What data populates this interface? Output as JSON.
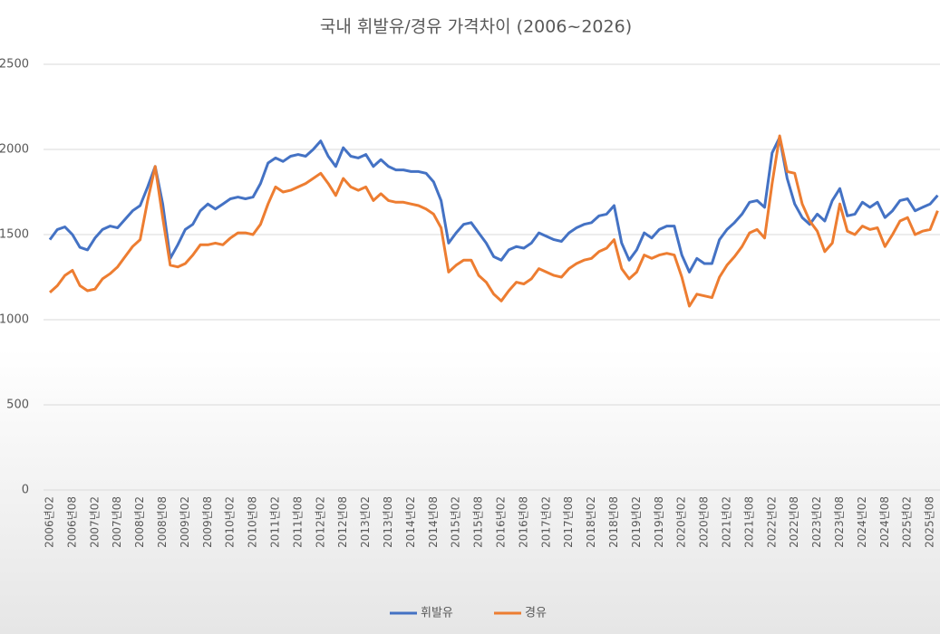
{
  "chart_data": {
    "type": "line",
    "title": "국내 휘발유/경유 가격차이 (2006~2026)",
    "categories": [
      "2006년02",
      null,
      null,
      "2006년08",
      null,
      null,
      "2007년02",
      null,
      null,
      "2007년08",
      null,
      null,
      "2008년02",
      null,
      null,
      "2008년08",
      null,
      null,
      "2009년02",
      null,
      null,
      "2009년08",
      null,
      null,
      "2010년02",
      null,
      null,
      "2010년08",
      null,
      null,
      "2011년02",
      null,
      null,
      "2011년08",
      null,
      null,
      "2012년02",
      null,
      null,
      "2012년08",
      null,
      null,
      "2013년02",
      null,
      null,
      "2013년08",
      null,
      null,
      "2014년02",
      null,
      null,
      "2014년08",
      null,
      null,
      "2015년02",
      null,
      null,
      "2015년08",
      null,
      null,
      "2016년02",
      null,
      null,
      "2016년08",
      null,
      null,
      "2017년02",
      null,
      null,
      "2017년08",
      null,
      null,
      "2018년02",
      null,
      null,
      "2018년08",
      null,
      null,
      "2019년02",
      null,
      null,
      "2019년08",
      null,
      null,
      "2020년02",
      null,
      null,
      "2020년08",
      null,
      null,
      "2021년02",
      null,
      null,
      "2021년08",
      null,
      null,
      "2022년02",
      null,
      null,
      "2022년08",
      null,
      null,
      "2023년02",
      null,
      null,
      "2023년08",
      null,
      null,
      "2024년02",
      null,
      null,
      "2024년08",
      null,
      null,
      "2025년02",
      null,
      null,
      "2025년08",
      null
    ],
    "series": [
      {
        "name": "휘발유",
        "color": "#4472c4",
        "values": [
          1470,
          1530,
          1545,
          1500,
          1425,
          1410,
          1480,
          1530,
          1550,
          1540,
          1590,
          1640,
          1670,
          1780,
          1900,
          1680,
          1360,
          1440,
          1530,
          1560,
          1640,
          1680,
          1650,
          1680,
          1710,
          1720,
          1710,
          1720,
          1800,
          1920,
          1950,
          1930,
          1960,
          1970,
          1960,
          2000,
          2050,
          1960,
          1900,
          2010,
          1960,
          1950,
          1970,
          1900,
          1940,
          1900,
          1880,
          1880,
          1870,
          1870,
          1860,
          1810,
          1700,
          1450,
          1510,
          1560,
          1570,
          1510,
          1450,
          1370,
          1350,
          1410,
          1430,
          1420,
          1450,
          1510,
          1490,
          1470,
          1460,
          1510,
          1540,
          1560,
          1570,
          1610,
          1620,
          1670,
          1450,
          1350,
          1410,
          1510,
          1480,
          1530,
          1550,
          1550,
          1380,
          1280,
          1360,
          1330,
          1330,
          1470,
          1530,
          1570,
          1620,
          1690,
          1700,
          1660,
          1980,
          2070,
          1830,
          1680,
          1600,
          1560,
          1620,
          1580,
          1700,
          1770,
          1610,
          1620,
          1690,
          1660,
          1690,
          1600,
          1640,
          1700,
          1710,
          1640,
          1660,
          1680,
          1730
        ]
      },
      {
        "name": "경유",
        "color": "#ed7d31",
        "values": [
          1160,
          1200,
          1260,
          1290,
          1200,
          1170,
          1180,
          1240,
          1270,
          1310,
          1370,
          1430,
          1470,
          1700,
          1900,
          1600,
          1320,
          1310,
          1330,
          1380,
          1440,
          1440,
          1450,
          1440,
          1480,
          1510,
          1510,
          1500,
          1560,
          1680,
          1780,
          1750,
          1760,
          1780,
          1800,
          1830,
          1860,
          1800,
          1730,
          1830,
          1780,
          1760,
          1780,
          1700,
          1740,
          1700,
          1690,
          1690,
          1680,
          1670,
          1650,
          1620,
          1540,
          1280,
          1320,
          1350,
          1350,
          1260,
          1220,
          1150,
          1110,
          1170,
          1220,
          1210,
          1240,
          1300,
          1280,
          1260,
          1250,
          1300,
          1330,
          1350,
          1360,
          1400,
          1420,
          1470,
          1300,
          1240,
          1280,
          1380,
          1360,
          1380,
          1390,
          1380,
          1250,
          1080,
          1150,
          1140,
          1130,
          1250,
          1320,
          1370,
          1430,
          1510,
          1530,
          1480,
          1800,
          2080,
          1870,
          1860,
          1680,
          1580,
          1520,
          1400,
          1450,
          1680,
          1520,
          1500,
          1550,
          1530,
          1540,
          1430,
          1500,
          1580,
          1600,
          1500,
          1520,
          1530,
          1640
        ]
      }
    ],
    "ylim": [
      0,
      2500
    ],
    "yticks": [
      0,
      500,
      1000,
      1500,
      2000,
      2500
    ],
    "grid": true,
    "legend": "bottom"
  }
}
